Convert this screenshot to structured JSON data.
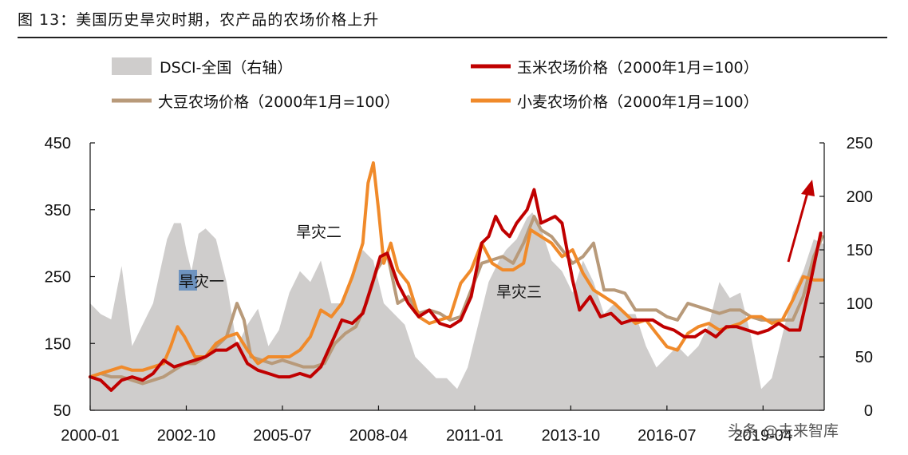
{
  "figure_title": "图 13：美国历史旱灾时期，农产品的农场价格上升",
  "chart_data": {
    "type": "line",
    "x_ticks": [
      "2000-01",
      "2002-10",
      "2005-07",
      "2008-04",
      "2011-01",
      "2013-10",
      "2016-07",
      "2019-04"
    ],
    "x_range": [
      2000.0,
      2021.0
    ],
    "left_axis": {
      "ylim": [
        50,
        450
      ],
      "ticks": [
        50,
        150,
        250,
        350,
        450
      ]
    },
    "right_axis": {
      "ylim": [
        0,
        250
      ],
      "ticks": [
        0,
        50,
        100,
        150,
        200,
        250
      ]
    },
    "legend": {
      "dsci": "DSCI-全国（右轴）",
      "corn": "玉米农场价格（2000年1月=100）",
      "soy": "大豆农场价格（2000年1月=100）",
      "wheat": "小麦农场价格（2000年1月=100）"
    },
    "colors": {
      "dsci": "#cfcdcc",
      "corn": "#c00000",
      "soy": "#b89a7a",
      "wheat": "#f08a2a",
      "arrow": "#c00000",
      "highlight": "#6e93bf"
    },
    "annotations": {
      "drought1": "旱灾一",
      "drought2": "旱灾二",
      "drought3": "旱灾三"
    },
    "watermark": "头条 @未来智库",
    "series": [
      {
        "name": "DSCI-全国",
        "axis": "right",
        "x": [
          2000.0,
          2000.3,
          2000.6,
          2000.9,
          2001.2,
          2001.5,
          2001.8,
          2002.0,
          2002.2,
          2002.4,
          2002.6,
          2002.75,
          2002.9,
          2003.1,
          2003.3,
          2003.6,
          2003.9,
          2004.2,
          2004.5,
          2004.8,
          2005.1,
          2005.4,
          2005.7,
          2006.0,
          2006.3,
          2006.6,
          2006.9,
          2007.2,
          2007.5,
          2007.8,
          2008.1,
          2008.4,
          2008.7,
          2009.0,
          2009.3,
          2009.6,
          2009.9,
          2010.2,
          2010.5,
          2010.8,
          2011.1,
          2011.4,
          2011.7,
          2011.9,
          2012.2,
          2012.5,
          2012.65,
          2012.9,
          2013.2,
          2013.5,
          2013.8,
          2014.1,
          2014.4,
          2014.7,
          2015.0,
          2015.3,
          2015.6,
          2015.9,
          2016.2,
          2016.5,
          2016.8,
          2017.1,
          2017.4,
          2017.7,
          2018.0,
          2018.3,
          2018.6,
          2018.9,
          2019.2,
          2019.5,
          2019.8,
          2020.1,
          2020.4,
          2020.7,
          2021.0
        ],
        "values": [
          100,
          90,
          85,
          135,
          60,
          80,
          100,
          130,
          160,
          175,
          175,
          150,
          130,
          165,
          170,
          160,
          120,
          60,
          80,
          95,
          60,
          75,
          110,
          130,
          120,
          140,
          100,
          100,
          130,
          150,
          140,
          100,
          90,
          80,
          50,
          40,
          30,
          30,
          20,
          40,
          80,
          120,
          140,
          150,
          160,
          180,
          185,
          170,
          140,
          130,
          110,
          140,
          120,
          90,
          100,
          90,
          90,
          60,
          40,
          50,
          60,
          50,
          60,
          80,
          120,
          105,
          110,
          70,
          20,
          30,
          70,
          110,
          130,
          160,
          155
        ]
      },
      {
        "name": "玉米农场价格",
        "axis": "left",
        "x": [
          2000.0,
          2000.3,
          2000.6,
          2000.9,
          2001.2,
          2001.5,
          2001.8,
          2002.1,
          2002.4,
          2002.7,
          2003.0,
          2003.3,
          2003.6,
          2003.9,
          2004.2,
          2004.5,
          2004.8,
          2005.1,
          2005.4,
          2005.7,
          2006.0,
          2006.3,
          2006.6,
          2006.9,
          2007.2,
          2007.5,
          2007.8,
          2008.1,
          2008.3,
          2008.5,
          2008.8,
          2009.1,
          2009.4,
          2009.7,
          2010.0,
          2010.3,
          2010.6,
          2010.9,
          2011.2,
          2011.4,
          2011.6,
          2011.8,
          2012.0,
          2012.2,
          2012.5,
          2012.7,
          2012.9,
          2013.1,
          2013.3,
          2013.5,
          2013.8,
          2014.0,
          2014.3,
          2014.6,
          2014.9,
          2015.2,
          2015.5,
          2015.8,
          2016.1,
          2016.4,
          2016.7,
          2017.0,
          2017.3,
          2017.6,
          2017.9,
          2018.2,
          2018.5,
          2018.8,
          2019.1,
          2019.4,
          2019.7,
          2020.0,
          2020.3,
          2020.6,
          2020.9
        ],
        "values": [
          100,
          95,
          80,
          95,
          100,
          95,
          105,
          125,
          115,
          120,
          125,
          130,
          140,
          140,
          150,
          120,
          110,
          105,
          100,
          100,
          105,
          100,
          115,
          150,
          185,
          180,
          195,
          245,
          280,
          285,
          240,
          210,
          190,
          200,
          180,
          175,
          185,
          220,
          300,
          310,
          340,
          320,
          310,
          330,
          350,
          380,
          330,
          335,
          340,
          330,
          245,
          200,
          220,
          190,
          195,
          180,
          185,
          185,
          185,
          175,
          170,
          160,
          160,
          170,
          160,
          175,
          175,
          170,
          165,
          170,
          180,
          170,
          170,
          240,
          315
        ]
      },
      {
        "name": "大豆农场价格",
        "axis": "left",
        "x": [
          2000.0,
          2000.3,
          2000.6,
          2000.9,
          2001.2,
          2001.5,
          2001.8,
          2002.1,
          2002.4,
          2002.7,
          2003.0,
          2003.3,
          2003.6,
          2003.9,
          2004.2,
          2004.4,
          2004.6,
          2004.9,
          2005.2,
          2005.5,
          2005.8,
          2006.1,
          2006.4,
          2006.7,
          2007.0,
          2007.3,
          2007.6,
          2007.9,
          2008.2,
          2008.5,
          2008.8,
          2009.1,
          2009.4,
          2009.7,
          2010.0,
          2010.3,
          2010.6,
          2010.9,
          2011.2,
          2011.5,
          2011.8,
          2012.1,
          2012.4,
          2012.7,
          2012.9,
          2013.2,
          2013.5,
          2013.8,
          2014.1,
          2014.4,
          2014.7,
          2015.0,
          2015.3,
          2015.6,
          2015.9,
          2016.2,
          2016.5,
          2016.8,
          2017.1,
          2017.4,
          2017.7,
          2018.0,
          2018.3,
          2018.6,
          2018.9,
          2019.2,
          2019.5,
          2019.8,
          2020.1,
          2020.4,
          2020.7,
          2020.95
        ],
        "values": [
          100,
          105,
          100,
          100,
          95,
          90,
          95,
          100,
          110,
          120,
          120,
          130,
          145,
          160,
          210,
          185,
          130,
          125,
          120,
          125,
          120,
          115,
          115,
          120,
          150,
          165,
          175,
          210,
          260,
          285,
          210,
          220,
          195,
          200,
          195,
          185,
          190,
          230,
          270,
          275,
          280,
          270,
          300,
          340,
          320,
          310,
          290,
          270,
          280,
          300,
          230,
          230,
          225,
          200,
          200,
          200,
          190,
          185,
          210,
          205,
          200,
          195,
          200,
          200,
          190,
          185,
          185,
          185,
          185,
          220,
          280,
          310
        ]
      },
      {
        "name": "小麦农场价格",
        "axis": "left",
        "x": [
          2000.0,
          2000.3,
          2000.6,
          2000.9,
          2001.2,
          2001.5,
          2001.8,
          2002.1,
          2002.3,
          2002.5,
          2002.7,
          2003.0,
          2003.3,
          2003.6,
          2003.9,
          2004.2,
          2004.5,
          2004.8,
          2005.1,
          2005.4,
          2005.7,
          2006.0,
          2006.3,
          2006.6,
          2006.9,
          2007.2,
          2007.5,
          2007.8,
          2007.95,
          2008.1,
          2008.25,
          2008.4,
          2008.6,
          2008.8,
          2009.1,
          2009.4,
          2009.7,
          2010.0,
          2010.3,
          2010.6,
          2010.9,
          2011.2,
          2011.5,
          2011.8,
          2012.1,
          2012.4,
          2012.6,
          2012.9,
          2013.2,
          2013.5,
          2013.8,
          2014.1,
          2014.4,
          2014.7,
          2015.0,
          2015.3,
          2015.6,
          2015.9,
          2016.2,
          2016.5,
          2016.8,
          2017.1,
          2017.4,
          2017.7,
          2018.0,
          2018.3,
          2018.6,
          2018.9,
          2019.2,
          2019.5,
          2019.8,
          2020.1,
          2020.4,
          2020.7,
          2020.95
        ],
        "values": [
          100,
          105,
          110,
          115,
          110,
          110,
          115,
          120,
          145,
          175,
          160,
          130,
          130,
          150,
          160,
          165,
          140,
          120,
          130,
          130,
          130,
          140,
          160,
          200,
          190,
          210,
          250,
          300,
          390,
          420,
          350,
          270,
          300,
          260,
          240,
          190,
          180,
          185,
          190,
          240,
          260,
          300,
          270,
          260,
          260,
          270,
          320,
          310,
          300,
          280,
          290,
          255,
          230,
          220,
          210,
          195,
          180,
          185,
          165,
          145,
          140,
          165,
          175,
          180,
          170,
          175,
          180,
          190,
          190,
          180,
          185,
          215,
          250,
          245,
          245
        ]
      }
    ]
  }
}
